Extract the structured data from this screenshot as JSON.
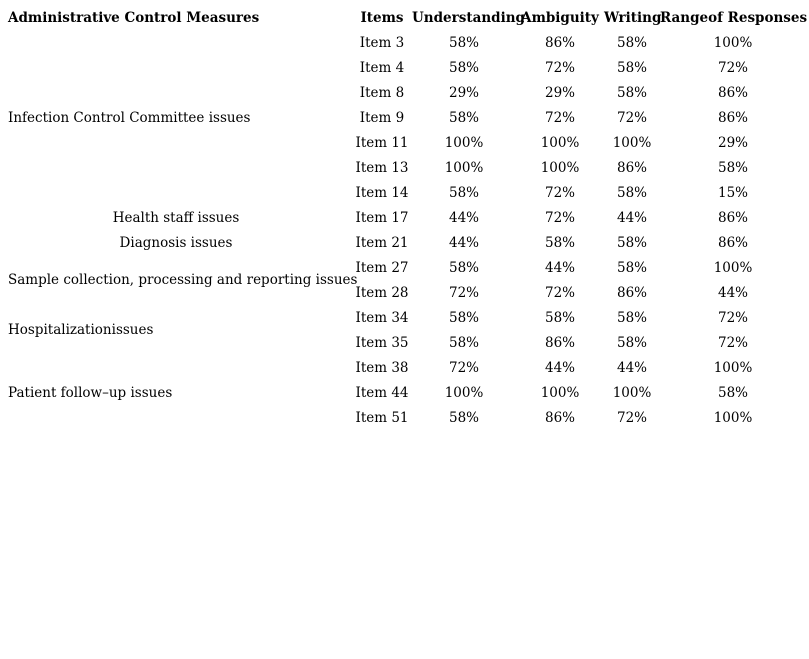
{
  "page": {
    "background_color": "#ffffff",
    "text_color": "#000000"
  },
  "table": {
    "headers": {
      "measures": "Administrative Control Measures",
      "items": "Items",
      "understanding": "Understanding",
      "ambiguity": "Ambiguity",
      "writing": "Writing",
      "range": "Rangeof Responses"
    },
    "groups": [
      {
        "label": "Infection Control Committee issues",
        "align": "left",
        "rows": [
          {
            "item": "Item 3",
            "understanding": "58%",
            "ambiguity": "86%",
            "writing": "58%",
            "range": "100%"
          },
          {
            "item": "Item 4",
            "understanding": "58%",
            "ambiguity": "72%",
            "writing": "58%",
            "range": "72%"
          },
          {
            "item": "Item 8",
            "understanding": "29%",
            "ambiguity": "29%",
            "writing": "58%",
            "range": "86%"
          },
          {
            "item": "Item 9",
            "understanding": "58%",
            "ambiguity": "72%",
            "writing": "72%",
            "range": "86%"
          },
          {
            "item": "Item 11",
            "understanding": "100%",
            "ambiguity": "100%",
            "writing": "100%",
            "range": "29%"
          },
          {
            "item": "Item 13",
            "understanding": "100%",
            "ambiguity": "100%",
            "writing": "86%",
            "range": "58%"
          },
          {
            "item": "Item 14",
            "understanding": "58%",
            "ambiguity": "72%",
            "writing": "58%",
            "range": "15%"
          }
        ]
      },
      {
        "label": "Health staff issues",
        "align": "center",
        "rows": [
          {
            "item": "Item 17",
            "understanding": "44%",
            "ambiguity": "72%",
            "writing": "44%",
            "range": "86%"
          }
        ]
      },
      {
        "label": "Diagnosis issues",
        "align": "center",
        "rows": [
          {
            "item": "Item 21",
            "understanding": "44%",
            "ambiguity": "58%",
            "writing": "58%",
            "range": "86%"
          }
        ]
      },
      {
        "label": "Sample collection, processing and reporting issues",
        "align": "left",
        "rows": [
          {
            "item": "Item 27",
            "understanding": "58%",
            "ambiguity": "44%",
            "writing": "58%",
            "range": "100%"
          },
          {
            "item": "Item 28",
            "understanding": "72%",
            "ambiguity": "72%",
            "writing": "86%",
            "range": "44%"
          }
        ]
      },
      {
        "label": "Hospitalizationissues",
        "align": "left",
        "rows": [
          {
            "item": "Item 34",
            "understanding": "58%",
            "ambiguity": "58%",
            "writing": "58%",
            "range": "72%"
          },
          {
            "item": "Item 35",
            "understanding": "58%",
            "ambiguity": "86%",
            "writing": "58%",
            "range": "72%"
          }
        ]
      },
      {
        "label": "Patient follow–up issues",
        "align": "left",
        "rows": [
          {
            "item": "Item 38",
            "understanding": "72%",
            "ambiguity": "44%",
            "writing": "44%",
            "range": "100%"
          },
          {
            "item": "Item 44",
            "understanding": "100%",
            "ambiguity": "100%",
            "writing": "100%",
            "range": "58%"
          },
          {
            "item": "Item 51",
            "understanding": "58%",
            "ambiguity": "86%",
            "writing": "72%",
            "range": "100%"
          }
        ]
      }
    ]
  }
}
